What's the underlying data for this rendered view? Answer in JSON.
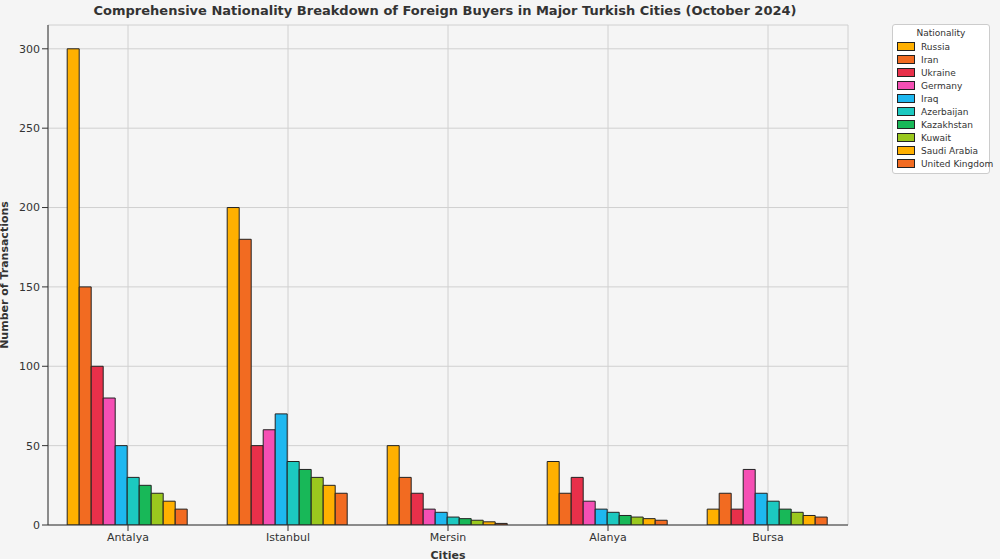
{
  "chart_data": {
    "type": "bar",
    "title": "Comprehensive Nationality Breakdown of Foreign Buyers in Major Turkish Cities (October 2024)",
    "x_label": "Cities",
    "y_label": "Number of Transactions",
    "legend_title": "Nationality",
    "categories": [
      "Antalya",
      "Istanbul",
      "Mersin",
      "Alanya",
      "Bursa"
    ],
    "series": [
      {
        "name": "Russia",
        "color": "#ffb000",
        "values": [
          300,
          200,
          50,
          40,
          10
        ]
      },
      {
        "name": "Iran",
        "color": "#f26b21",
        "values": [
          150,
          180,
          30,
          20,
          20
        ]
      },
      {
        "name": "Ukraine",
        "color": "#e8304a",
        "values": [
          100,
          50,
          20,
          30,
          10
        ]
      },
      {
        "name": "Germany",
        "color": "#f54fb4",
        "values": [
          80,
          60,
          10,
          15,
          35
        ]
      },
      {
        "name": "Iraq",
        "color": "#1eb8f0",
        "values": [
          50,
          70,
          8,
          10,
          20
        ]
      },
      {
        "name": "Azerbaijan",
        "color": "#1cc9c0",
        "values": [
          30,
          40,
          5,
          8,
          15
        ]
      },
      {
        "name": "Kazakhstan",
        "color": "#18b858",
        "values": [
          25,
          35,
          4,
          6,
          10
        ]
      },
      {
        "name": "Kuwait",
        "color": "#9ac81e",
        "values": [
          20,
          30,
          3,
          5,
          8
        ]
      },
      {
        "name": "Saudi Arabia",
        "color": "#ffb000",
        "values": [
          15,
          25,
          2,
          4,
          6
        ]
      },
      {
        "name": "United Kingdom",
        "color": "#f26b21",
        "values": [
          10,
          20,
          1,
          3,
          5
        ]
      }
    ],
    "ylim": [
      0,
      315
    ],
    "yticks": [
      0,
      50,
      100,
      150,
      200,
      250,
      300
    ],
    "grid": true,
    "legend": "upper right"
  }
}
